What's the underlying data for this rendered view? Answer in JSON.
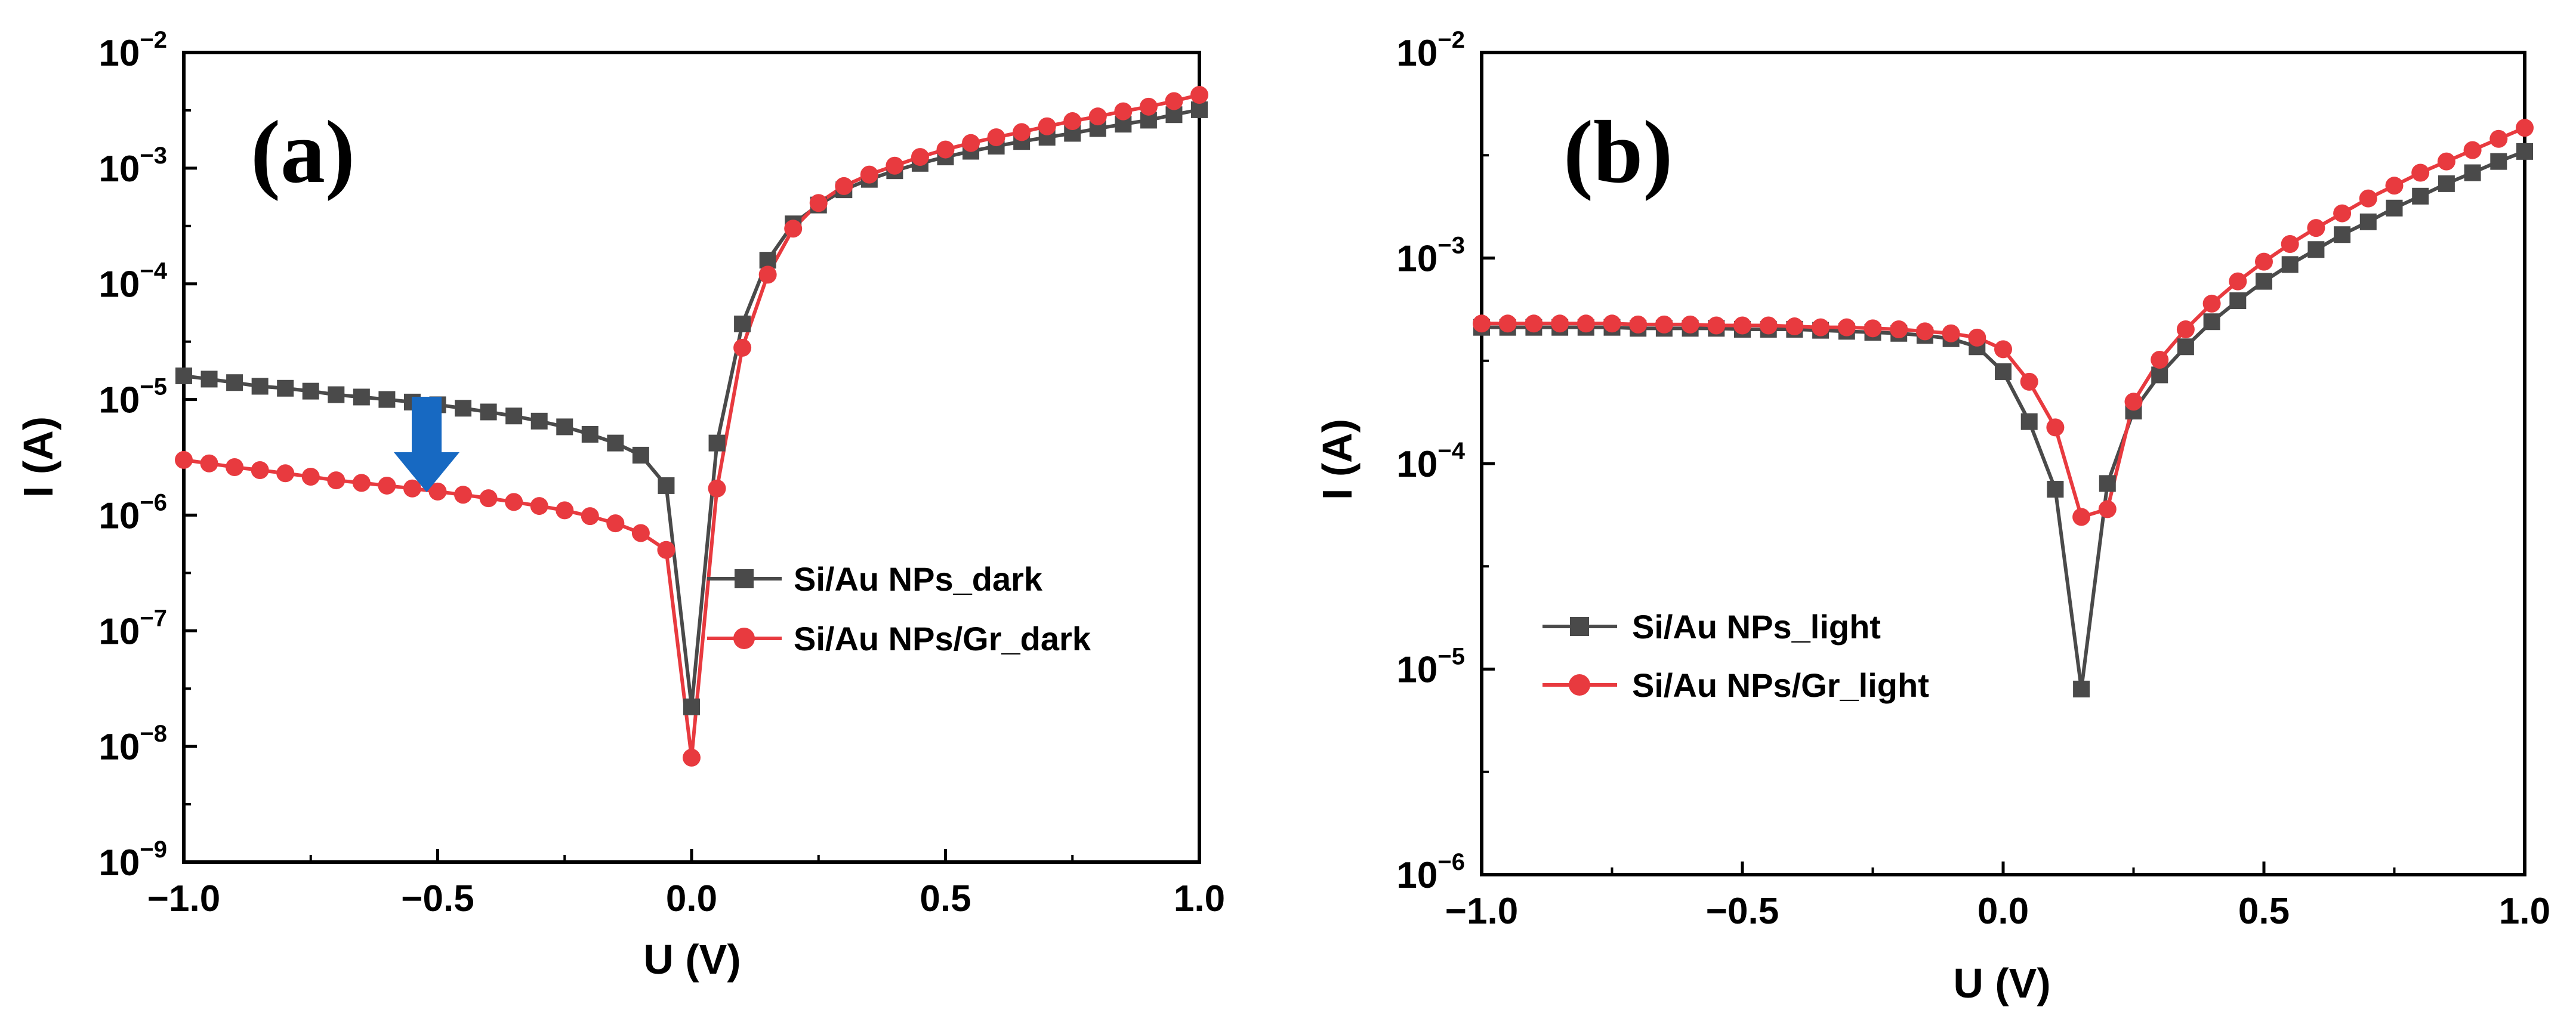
{
  "chart_data": [
    {
      "panel": "(a)",
      "type": "line",
      "xlabel": "U (V)",
      "ylabel": "I (A)",
      "xlim": [
        -1.0,
        1.0
      ],
      "ylim": [
        1e-09,
        0.01
      ],
      "yscale": "log",
      "x_ticks": [
        "−1.0",
        "−0.5",
        "0.0",
        "0.5",
        "1.0"
      ],
      "y_ticks": [
        {
          "base": "10",
          "exp": "−9"
        },
        {
          "base": "10",
          "exp": "−8"
        },
        {
          "base": "10",
          "exp": "−7"
        },
        {
          "base": "10",
          "exp": "−6"
        },
        {
          "base": "10",
          "exp": "−5"
        },
        {
          "base": "10",
          "exp": "−4"
        },
        {
          "base": "10",
          "exp": "−3"
        },
        {
          "base": "10",
          "exp": "−2"
        }
      ],
      "legend_position": "middle-right",
      "annotation": "blue arrow at U = −0.5 V pointing from the dark curve down to the Gr curve",
      "series": [
        {
          "name": "Si/Au NPs_dark",
          "color": "#4a4a4a",
          "marker": "square",
          "x": [
            -1.0,
            -0.95,
            -0.9,
            -0.85,
            -0.8,
            -0.75,
            -0.7,
            -0.65,
            -0.6,
            -0.55,
            -0.5,
            -0.45,
            -0.4,
            -0.35,
            -0.3,
            -0.25,
            -0.2,
            -0.15,
            -0.1,
            -0.05,
            0.0,
            0.05,
            0.1,
            0.15,
            0.2,
            0.25,
            0.3,
            0.35,
            0.4,
            0.45,
            0.5,
            0.55,
            0.6,
            0.65,
            0.7,
            0.75,
            0.8,
            0.85,
            0.9,
            0.95,
            1.0
          ],
          "y": [
            1.6e-05,
            1.5e-05,
            1.4e-05,
            1.3e-05,
            1.25e-05,
            1.18e-05,
            1.1e-05,
            1.05e-05,
            1e-05,
            9.5e-06,
            9e-06,
            8.4e-06,
            7.8e-06,
            7.2e-06,
            6.5e-06,
            5.8e-06,
            5e-06,
            4.2e-06,
            3.3e-06,
            1.8e-06,
            2.2e-08,
            4.2e-06,
            4.5e-05,
            0.00016,
            0.00033,
            0.00048,
            0.00065,
            0.0008,
            0.00095,
            0.0011,
            0.00125,
            0.0014,
            0.00155,
            0.0017,
            0.00185,
            0.002,
            0.0022,
            0.0024,
            0.0026,
            0.0029,
            0.0032
          ]
        },
        {
          "name": "Si/Au NPs/Gr_dark",
          "color": "#e83a3f",
          "marker": "circle",
          "x": [
            -1.0,
            -0.95,
            -0.9,
            -0.85,
            -0.8,
            -0.75,
            -0.7,
            -0.65,
            -0.6,
            -0.55,
            -0.5,
            -0.45,
            -0.4,
            -0.35,
            -0.3,
            -0.25,
            -0.2,
            -0.15,
            -0.1,
            -0.05,
            0.0,
            0.05,
            0.1,
            0.15,
            0.2,
            0.25,
            0.3,
            0.35,
            0.4,
            0.45,
            0.5,
            0.55,
            0.6,
            0.65,
            0.7,
            0.75,
            0.8,
            0.85,
            0.9,
            0.95,
            1.0
          ],
          "y": [
            3e-06,
            2.8e-06,
            2.6e-06,
            2.45e-06,
            2.3e-06,
            2.15e-06,
            2e-06,
            1.9e-06,
            1.8e-06,
            1.7e-06,
            1.6e-06,
            1.5e-06,
            1.4e-06,
            1.3e-06,
            1.2e-06,
            1.1e-06,
            9.8e-07,
            8.5e-07,
            7e-07,
            5e-07,
            8e-09,
            1.7e-06,
            2.8e-05,
            0.00012,
            0.0003,
            0.0005,
            0.0007,
            0.00088,
            0.00105,
            0.00125,
            0.00145,
            0.00165,
            0.00185,
            0.00205,
            0.0023,
            0.00255,
            0.0028,
            0.0031,
            0.0034,
            0.0038,
            0.0043
          ]
        }
      ]
    },
    {
      "panel": "(b)",
      "type": "line",
      "xlabel": "U (V)",
      "ylabel": "I (A)",
      "xlim": [
        -1.0,
        1.0
      ],
      "ylim": [
        1e-06,
        0.01
      ],
      "yscale": "log",
      "x_ticks": [
        "−1.0",
        "−0.5",
        "0.0",
        "0.5",
        "1.0"
      ],
      "y_ticks": [
        {
          "base": "10",
          "exp": "−6"
        },
        {
          "base": "10",
          "exp": "−5"
        },
        {
          "base": "10",
          "exp": "−4"
        },
        {
          "base": "10",
          "exp": "−3"
        },
        {
          "base": "10",
          "exp": "−2"
        }
      ],
      "legend_position": "lower-middle",
      "series": [
        {
          "name": "Si/Au NPs_light",
          "color": "#4a4a4a",
          "marker": "square",
          "x": [
            -1.0,
            -0.95,
            -0.9,
            -0.85,
            -0.8,
            -0.75,
            -0.7,
            -0.65,
            -0.6,
            -0.55,
            -0.5,
            -0.45,
            -0.4,
            -0.35,
            -0.3,
            -0.25,
            -0.2,
            -0.15,
            -0.1,
            -0.05,
            0.0,
            0.05,
            0.1,
            0.15,
            0.2,
            0.25,
            0.3,
            0.35,
            0.4,
            0.45,
            0.5,
            0.55,
            0.6,
            0.65,
            0.7,
            0.75,
            0.8,
            0.85,
            0.9,
            0.95,
            1.0
          ],
          "y": [
            0.00046,
            0.00046,
            0.00046,
            0.00046,
            0.00046,
            0.00046,
            0.000455,
            0.000455,
            0.000455,
            0.000455,
            0.00045,
            0.00045,
            0.00045,
            0.000445,
            0.00044,
            0.000435,
            0.00043,
            0.00042,
            0.000405,
            0.00037,
            0.00028,
            0.00016,
            7.5e-05,
            8e-06,
            8e-05,
            0.00018,
            0.00027,
            0.00037,
            0.00049,
            0.00062,
            0.00077,
            0.00093,
            0.0011,
            0.0013,
            0.0015,
            0.00175,
            0.002,
            0.0023,
            0.0026,
            0.00295,
            0.0033
          ]
        },
        {
          "name": "Si/Au NPs/Gr_light",
          "color": "#e83a3f",
          "marker": "circle",
          "x": [
            -1.0,
            -0.95,
            -0.9,
            -0.85,
            -0.8,
            -0.75,
            -0.7,
            -0.65,
            -0.6,
            -0.55,
            -0.5,
            -0.45,
            -0.4,
            -0.35,
            -0.3,
            -0.25,
            -0.2,
            -0.15,
            -0.1,
            -0.05,
            0.0,
            0.05,
            0.1,
            0.15,
            0.2,
            0.25,
            0.3,
            0.35,
            0.4,
            0.45,
            0.5,
            0.55,
            0.6,
            0.65,
            0.7,
            0.75,
            0.8,
            0.85,
            0.9,
            0.95,
            1.0
          ],
          "y": [
            0.00048,
            0.00048,
            0.00048,
            0.00048,
            0.00048,
            0.00048,
            0.000475,
            0.000475,
            0.000475,
            0.00047,
            0.00047,
            0.00047,
            0.000465,
            0.00046,
            0.00046,
            0.000455,
            0.00045,
            0.00044,
            0.00043,
            0.00041,
            0.00036,
            0.00025,
            0.00015,
            5.5e-05,
            6e-05,
            0.0002,
            0.00032,
            0.00045,
            0.0006,
            0.00077,
            0.00096,
            0.00117,
            0.0014,
            0.00165,
            0.00195,
            0.00225,
            0.0026,
            0.00295,
            0.00335,
            0.0038,
            0.0043
          ]
        }
      ]
    }
  ]
}
